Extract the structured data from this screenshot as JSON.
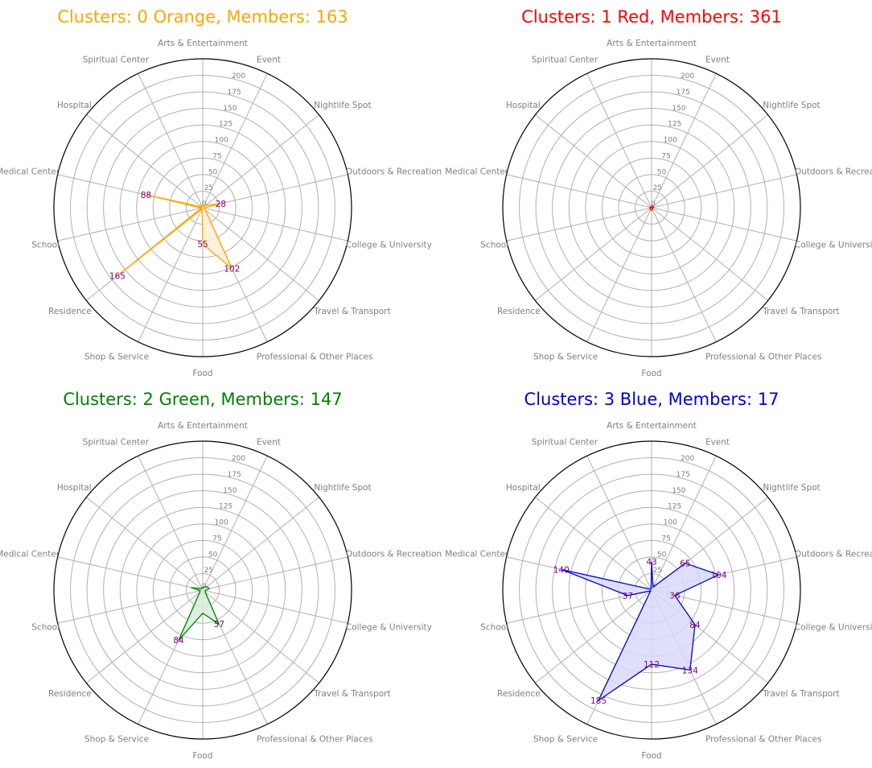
{
  "chart_data": [
    {
      "type": "radar",
      "title": "Clusters: 0 Orange, Members: 163",
      "color": "#FFA500",
      "fill": "#FFEFD9",
      "categories": [
        "Arts & Entertainment",
        "Event",
        "Nightlife Spot",
        "Outdoors & Recreation",
        "College & University",
        "Travel & Transport",
        "Professional & Other Places",
        "Food",
        "Shop & Service",
        "Residence",
        "School",
        "Medical Center",
        "Hospital",
        "Spiritual Center"
      ],
      "values": [
        5,
        2,
        6,
        28,
        2,
        5,
        102,
        55,
        2,
        165,
        2,
        88,
        2,
        5
      ],
      "labeled_values": [
        28,
        102,
        55,
        165,
        88
      ],
      "rlim": [
        0,
        225
      ],
      "rticks": [
        0,
        25,
        50,
        75,
        100,
        125,
        150,
        175,
        200
      ]
    },
    {
      "type": "radar",
      "title": "Clusters: 1 Red, Members: 361",
      "color": "#FF0000",
      "fill": "#FFD9D9",
      "categories": [
        "Arts & Entertainment",
        "Event",
        "Nightlife Spot",
        "Outdoors & Recreation",
        "College & University",
        "Travel & Transport",
        "Professional & Other Places",
        "Food",
        "Shop & Service",
        "Residence",
        "School",
        "Medical Center",
        "Hospital",
        "Spiritual Center"
      ],
      "values": [
        2,
        1,
        2,
        3,
        1,
        2,
        3,
        4,
        3,
        3,
        1,
        2,
        1,
        1
      ],
      "labeled_values": [],
      "rlim": [
        0,
        225
      ],
      "rticks": [
        0,
        25,
        50,
        75,
        100,
        125,
        150,
        175,
        200
      ]
    },
    {
      "type": "radar",
      "title": "Clusters: 2 Green, Members: 147",
      "color": "#008000",
      "fill": "#D9ECD9",
      "categories": [
        "Arts & Entertainment",
        "Event",
        "Nightlife Spot",
        "Outdoors & Recreation",
        "College & University",
        "Travel & Transport",
        "Professional & Other Places",
        "Food",
        "Shop & Service",
        "Residence",
        "School",
        "Medical Center",
        "Hospital",
        "Spiritual Center"
      ],
      "values": [
        3,
        5,
        8,
        10,
        4,
        5,
        57,
        35,
        84,
        6,
        4,
        18,
        3,
        4
      ],
      "labeled_values": [
        57,
        84
      ],
      "rlim": [
        0,
        225
      ],
      "rticks": [
        0,
        25,
        50,
        75,
        100,
        125,
        150,
        175,
        200
      ]
    },
    {
      "type": "radar",
      "title": "Clusters: 3 Blue, Members: 17",
      "color": "#0000CD",
      "fill": "#D9D9FA",
      "categories": [
        "Arts & Entertainment",
        "Event",
        "Nightlife Spot",
        "Outdoors & Recreation",
        "College & University",
        "Travel & Transport",
        "Professional & Other Places",
        "Food",
        "Shop & Service",
        "Residence",
        "School",
        "Medical Center",
        "Hospital",
        "Spiritual Center"
      ],
      "values": [
        43,
        5,
        65,
        104,
        36,
        84,
        134,
        112,
        185,
        2,
        37,
        140,
        2,
        2
      ],
      "labeled_values": [
        43,
        65,
        104,
        36,
        84,
        134,
        112,
        185,
        37,
        140
      ],
      "rlim": [
        0,
        225
      ],
      "rticks": [
        0,
        25,
        50,
        75,
        100,
        125,
        150,
        175,
        200
      ]
    }
  ]
}
